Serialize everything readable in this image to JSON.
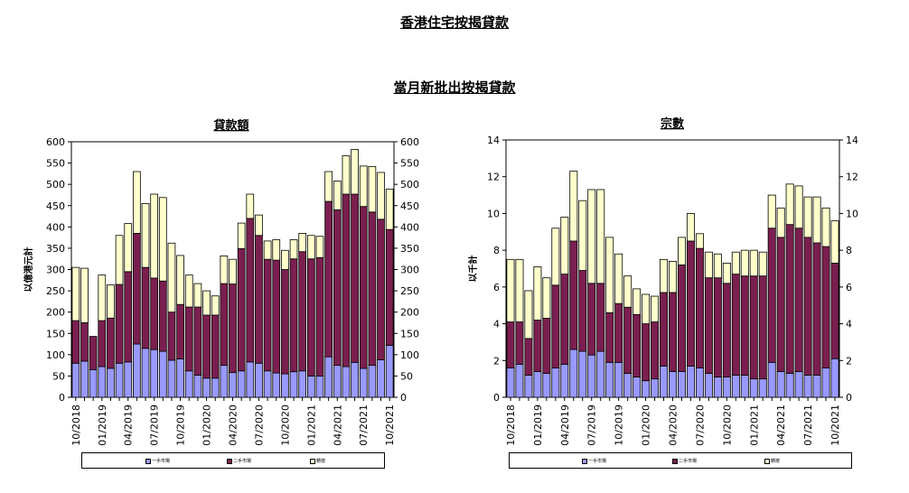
{
  "main_title": "香港住宅按揭貸款",
  "sub_title": "當月新批出按揭貸款",
  "colors": {
    "primary": "#9999ff",
    "secondary": "#7a1f4f",
    "refi": "#ffffcc",
    "outline": "#000000"
  },
  "legend": {
    "primary": "一手市場",
    "secondary": "二手市場",
    "refi": "轉按"
  },
  "categories": [
    "10/2018",
    "11/2018",
    "12/2018",
    "01/2019",
    "02/2019",
    "03/2019",
    "04/2019",
    "05/2019",
    "06/2019",
    "07/2019",
    "08/2019",
    "09/2019",
    "10/2019",
    "11/2019",
    "12/2019",
    "01/2020",
    "02/2020",
    "03/2020",
    "04/2020",
    "05/2020",
    "06/2020",
    "07/2020",
    "08/2020",
    "09/2020",
    "10/2020",
    "11/2020",
    "12/2020",
    "01/2021",
    "02/2021",
    "03/2021",
    "04/2021",
    "05/2021",
    "06/2021",
    "07/2021",
    "08/2021",
    "09/2021",
    "10/2021"
  ],
  "chart_data": [
    {
      "type": "bar",
      "stacked": true,
      "title": "貸款額",
      "xlabel": "",
      "ylabel": "以億港元計",
      "ylim": [
        0,
        600
      ],
      "yticks": [
        0,
        50,
        100,
        150,
        200,
        250,
        300,
        350,
        400,
        450,
        500,
        550,
        600
      ],
      "xtick_labels": [
        "10/2018",
        "01/2019",
        "04/2019",
        "07/2019",
        "10/2019",
        "01/2020",
        "04/2020",
        "07/2020",
        "10/2020",
        "01/2021",
        "04/2021",
        "07/2021",
        "10/2021"
      ],
      "series": [
        {
          "name": "一手市場",
          "values": [
            80,
            85,
            65,
            72,
            68,
            80,
            83,
            125,
            115,
            112,
            108,
            87,
            90,
            62,
            52,
            45,
            45,
            75,
            58,
            62,
            83,
            80,
            62,
            57,
            55,
            60,
            62,
            50,
            50,
            95,
            75,
            72,
            82,
            68,
            75,
            88,
            122
          ]
        },
        {
          "name": "二手市場",
          "values": [
            100,
            90,
            78,
            108,
            118,
            185,
            212,
            260,
            190,
            168,
            165,
            113,
            128,
            150,
            160,
            148,
            148,
            192,
            208,
            287,
            337,
            300,
            262,
            265,
            245,
            265,
            280,
            275,
            278,
            365,
            365,
            405,
            395,
            380,
            360,
            330,
            272
          ]
        },
        {
          "name": "轉按",
          "values": [
            125,
            128,
            0,
            107,
            78,
            115,
            113,
            145,
            150,
            197,
            196,
            162,
            115,
            75,
            55,
            57,
            45,
            65,
            58,
            60,
            57,
            48,
            43,
            48,
            45,
            45,
            43,
            55,
            50,
            70,
            68,
            90,
            105,
            95,
            107,
            110,
            95
          ]
        }
      ]
    },
    {
      "type": "bar",
      "stacked": true,
      "title": "宗數",
      "xlabel": "",
      "ylabel": "以千計",
      "ylim": [
        0,
        14
      ],
      "yticks": [
        0,
        2,
        4,
        6,
        8,
        10,
        12,
        14
      ],
      "xtick_labels": [
        "10/2018",
        "01/2019",
        "04/2019",
        "07/2019",
        "10/2019",
        "01/2020",
        "04/2020",
        "07/2020",
        "10/2020",
        "01/2021",
        "04/2021",
        "07/2021",
        "10/2021"
      ],
      "series": [
        {
          "name": "一手市場",
          "values": [
            1.6,
            1.8,
            1.2,
            1.4,
            1.3,
            1.6,
            1.8,
            2.6,
            2.5,
            2.3,
            2.5,
            1.9,
            1.9,
            1.3,
            1.1,
            0.9,
            1.0,
            1.7,
            1.4,
            1.4,
            1.7,
            1.6,
            1.3,
            1.1,
            1.1,
            1.2,
            1.2,
            1.0,
            1.0,
            1.9,
            1.4,
            1.3,
            1.4,
            1.2,
            1.2,
            1.6,
            2.1
          ]
        },
        {
          "name": "二手市場",
          "values": [
            2.5,
            2.3,
            2.0,
            2.8,
            3.0,
            4.5,
            4.9,
            5.9,
            4.4,
            3.9,
            3.7,
            2.7,
            3.2,
            3.6,
            3.4,
            3.1,
            3.1,
            4.0,
            4.3,
            5.8,
            6.8,
            6.5,
            5.2,
            5.4,
            5.1,
            5.5,
            5.4,
            5.6,
            5.6,
            7.3,
            7.3,
            8.1,
            7.8,
            7.5,
            7.2,
            6.6,
            5.2
          ]
        },
        {
          "name": "轉按",
          "values": [
            3.4,
            3.4,
            2.6,
            2.9,
            2.2,
            3.1,
            3.1,
            3.8,
            3.8,
            5.1,
            5.1,
            4.1,
            2.7,
            1.7,
            1.4,
            1.6,
            1.4,
            1.8,
            1.7,
            1.5,
            1.5,
            0.8,
            1.4,
            1.3,
            1.1,
            1.2,
            1.4,
            1.4,
            1.3,
            1.8,
            1.6,
            2.2,
            2.3,
            2.2,
            2.5,
            2.1,
            2.3
          ]
        }
      ]
    }
  ]
}
